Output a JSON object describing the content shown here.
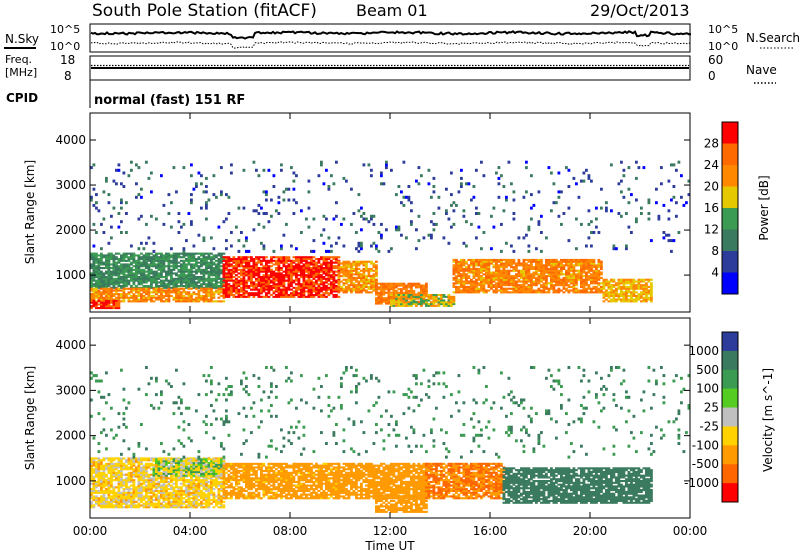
{
  "header": {
    "station_title": "South Pole Station (fitACF)",
    "beam_label": "Beam 01",
    "date_label": "29/Oct/2013"
  },
  "params_panel": {
    "nsky_label": "N.Sky",
    "nsearch_label": "N.Search",
    "noise_ticks_left": [
      "10^5",
      "10^0"
    ],
    "noise_ticks_right": [
      "10^5",
      "10^0"
    ],
    "freq_label_line1": "Freq.",
    "freq_label_line2": "[MHz]",
    "freq_ticks": [
      "18",
      "8"
    ],
    "nave_label": "Nave",
    "nave_ticks": [
      "60",
      "0"
    ],
    "cpid_label": "CPID",
    "cpid_value": "normal (fast) 151 RF"
  },
  "colors": {
    "power_scale": [
      "#0000ff",
      "#2d3c9a",
      "#3a7a5e",
      "#3b9b52",
      "#e6c800",
      "#ff8800",
      "#ff6a00",
      "#ff0000"
    ],
    "velocity_scale": [
      "#2d3c9a",
      "#3a7a5e",
      "#3b9b52",
      "#55cc22",
      "#c0c0c0",
      "#ffd200",
      "#ff9a00",
      "#ff6600",
      "#ff0000"
    ]
  },
  "chart_data": [
    {
      "type": "heatmap",
      "panel": "power",
      "x_axis": {
        "ticks": [
          "00:00",
          "04:00",
          "08:00",
          "12:00",
          "16:00",
          "20:00",
          "00:00"
        ],
        "range_hours": [
          0,
          24
        ]
      },
      "y_axis": {
        "label": "Slant Range [km]",
        "ticks": [
          1000,
          2000,
          3000,
          4000
        ],
        "range_km": [
          180,
          4600
        ]
      },
      "colorbar": {
        "label": "Power [dB]",
        "ticks": [
          4,
          8,
          12,
          16,
          20,
          24,
          28
        ],
        "range": [
          0,
          32
        ]
      },
      "regions": [
        {
          "t": [
            0.0,
            5.3
          ],
          "r": [
            700,
            1500
          ],
          "v": 12
        },
        {
          "t": [
            0.0,
            5.3
          ],
          "r": [
            400,
            700
          ],
          "v": 22
        },
        {
          "t": [
            0.0,
            1.2
          ],
          "r": [
            250,
            450
          ],
          "v": 28
        },
        {
          "t": [
            5.3,
            9.9
          ],
          "r": [
            500,
            1400
          ],
          "v": 29
        },
        {
          "t": [
            9.9,
            11.4
          ],
          "r": [
            600,
            1300
          ],
          "v": 22
        },
        {
          "t": [
            11.4,
            13.4
          ],
          "r": [
            350,
            800
          ],
          "v": 24
        },
        {
          "t": [
            12.0,
            14.5
          ],
          "r": [
            300,
            550
          ],
          "v": 18
        },
        {
          "t": [
            14.5,
            20.5
          ],
          "r": [
            600,
            1350
          ],
          "v": 23
        },
        {
          "t": [
            20.5,
            22.5
          ],
          "r": [
            400,
            900
          ],
          "v": 20
        },
        {
          "t": [
            0.0,
            24.0
          ],
          "r": [
            1500,
            3500
          ],
          "v": 7
        }
      ]
    },
    {
      "type": "heatmap",
      "panel": "velocity",
      "x_axis": {
        "label": "Time UT",
        "ticks": [
          "00:00",
          "04:00",
          "08:00",
          "12:00",
          "16:00",
          "20:00",
          "00:00"
        ],
        "range_hours": [
          0,
          24
        ]
      },
      "y_axis": {
        "label": "Slant Range [km]",
        "ticks": [
          1000,
          2000,
          3000,
          4000
        ],
        "range_km": [
          180,
          4600
        ]
      },
      "colorbar": {
        "label": "Velocity [m s^-1]",
        "ticks": [
          1000,
          500,
          100,
          25,
          -25,
          -100,
          -500,
          -1000
        ]
      },
      "regions": [
        {
          "t": [
            0.0,
            5.3
          ],
          "r": [
            400,
            1500
          ],
          "v": -60
        },
        {
          "t": [
            2.5,
            5.3
          ],
          "r": [
            1100,
            1500
          ],
          "v": 0
        },
        {
          "t": [
            5.3,
            9.9
          ],
          "r": [
            600,
            1400
          ],
          "v": -150
        },
        {
          "t": [
            9.9,
            13.4
          ],
          "r": [
            600,
            1400
          ],
          "v": -400
        },
        {
          "t": [
            11.4,
            13.4
          ],
          "r": [
            300,
            700
          ],
          "v": -300
        },
        {
          "t": [
            13.4,
            16.5
          ],
          "r": [
            600,
            1400
          ],
          "v": -500
        },
        {
          "t": [
            16.5,
            22.5
          ],
          "r": [
            500,
            1300
          ],
          "v": 200
        },
        {
          "t": [
            0.0,
            24.0
          ],
          "r": [
            1500,
            3500
          ],
          "v": 100
        }
      ]
    }
  ]
}
